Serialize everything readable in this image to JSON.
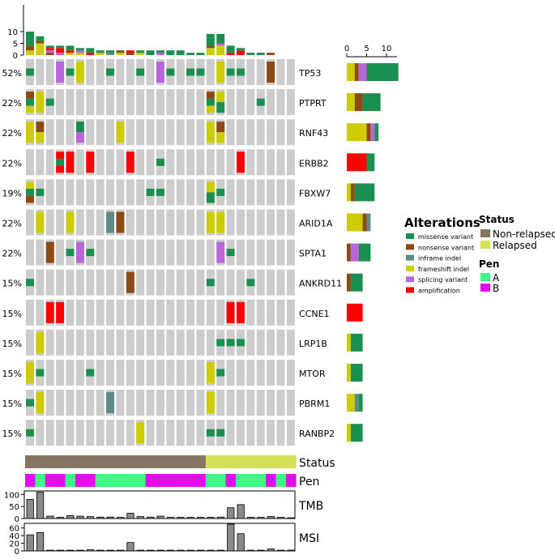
{
  "chart_data": {
    "type": "oncoprint",
    "sample_count": 27,
    "top_bar_ticks": [
      0,
      5,
      10
    ],
    "right_bar_ticks": [
      0,
      5,
      10
    ],
    "colors": {
      "missense": "#1a8f4f",
      "nonsense": "#8b4a16",
      "inframe": "#5f8a87",
      "frameshift": "#cccc00",
      "splicing": "#b866d9",
      "amplification": "#ff0000",
      "empty": "#cccccc",
      "non_relapsed": "#857562",
      "relapsed": "#d4e157",
      "pen_A": "#3dfa86",
      "pen_B": "#e60af0",
      "bar": "#8a8a8a"
    },
    "genes": [
      {
        "name": "TP53",
        "pct": "52%",
        "cells": [
          [
            "missense"
          ],
          [],
          [],
          [
            "splicing"
          ],
          [
            "missense"
          ],
          [
            "frameshift"
          ],
          [],
          [],
          [
            "missense"
          ],
          [],
          [],
          [
            "missense"
          ],
          [],
          [
            "splicing"
          ],
          [
            "missense"
          ],
          [],
          [
            "missense"
          ],
          [
            "missense"
          ],
          [],
          [
            "frameshift"
          ],
          [
            "missense"
          ],
          [
            "missense"
          ],
          [],
          [],
          [
            "nonsense"
          ],
          [],
          []
        ]
      },
      {
        "name": "PTPRT",
        "pct": "22%",
        "cells": [
          [
            "nonsense",
            "missense",
            "frameshift"
          ],
          [
            "frameshift"
          ],
          [
            "missense"
          ],
          [],
          [],
          [],
          [],
          [],
          [],
          [],
          [],
          [],
          [],
          [],
          [],
          [],
          [],
          [],
          [
            "nonsense",
            "missense",
            "frameshift"
          ],
          [
            "frameshift",
            "missense"
          ],
          [],
          [],
          [],
          [
            "missense"
          ],
          [],
          [],
          []
        ]
      },
      {
        "name": "RNF43",
        "pct": "22%",
        "cells": [
          [
            "frameshift"
          ],
          [
            "nonsense",
            "frameshift"
          ],
          [],
          [],
          [],
          [
            "missense",
            "splicing"
          ],
          [],
          [],
          [],
          [
            "frameshift"
          ],
          [],
          [],
          [],
          [],
          [],
          [],
          [],
          [],
          [
            "frameshift"
          ],
          [
            "nonsense",
            "frameshift"
          ],
          [],
          [],
          [],
          [],
          [],
          [],
          []
        ]
      },
      {
        "name": "ERBB2",
        "pct": "22%",
        "cells": [
          [],
          [],
          [],
          [
            "amplification",
            "missense",
            "amplification"
          ],
          [
            "amplification"
          ],
          [],
          [
            "amplification"
          ],
          [],
          [],
          [],
          [
            "amplification"
          ],
          [],
          [],
          [
            "missense"
          ],
          [],
          [],
          [],
          [],
          [],
          [],
          [],
          [
            "amplification"
          ],
          [],
          [],
          [],
          [],
          []
        ]
      },
      {
        "name": "FBXW7",
        "pct": "19%",
        "cells": [
          [
            "frameshift",
            "missense",
            "nonsense"
          ],
          [
            "missense"
          ],
          [],
          [],
          [],
          [],
          [],
          [],
          [],
          [],
          [],
          [],
          [
            "missense"
          ],
          [
            "missense"
          ],
          [],
          [],
          [],
          [],
          [
            "frameshift",
            "missense"
          ],
          [
            "missense"
          ],
          [],
          [],
          [],
          [],
          [],
          [],
          []
        ]
      },
      {
        "name": "ARID1A",
        "pct": "22%",
        "cells": [
          [],
          [
            "frameshift"
          ],
          [],
          [],
          [
            "frameshift"
          ],
          [],
          [],
          [],
          [
            "inframe"
          ],
          [
            "nonsense"
          ],
          [],
          [],
          [],
          [],
          [],
          [],
          [],
          [],
          [
            "frameshift"
          ],
          [
            "frameshift"
          ],
          [],
          [],
          [],
          [],
          [],
          [],
          []
        ]
      },
      {
        "name": "SPTA1",
        "pct": "22%",
        "cells": [
          [],
          [],
          [
            "nonsense"
          ],
          [],
          [
            "missense"
          ],
          [
            "splicing"
          ],
          [
            "missense"
          ],
          [],
          [],
          [],
          [],
          [],
          [],
          [],
          [],
          [],
          [],
          [],
          [],
          [
            "splicing"
          ],
          [
            "missense"
          ],
          [],
          [],
          [],
          [],
          [],
          []
        ]
      },
      {
        "name": "ANKRD11",
        "pct": "15%",
        "cells": [
          [
            "missense"
          ],
          [],
          [],
          [],
          [],
          [],
          [],
          [],
          [],
          [],
          [
            "nonsense"
          ],
          [],
          [],
          [],
          [],
          [],
          [],
          [],
          [
            "missense"
          ],
          [],
          [],
          [],
          [
            "missense"
          ],
          [],
          [],
          [],
          []
        ]
      },
      {
        "name": "CCNE1",
        "pct": "15%",
        "cells": [
          [],
          [],
          [
            "amplification"
          ],
          [
            "amplification"
          ],
          [],
          [],
          [],
          [],
          [],
          [],
          [],
          [],
          [],
          [],
          [],
          [],
          [],
          [],
          [],
          [],
          [
            "amplification"
          ],
          [
            "amplification"
          ],
          [],
          [],
          [],
          [],
          []
        ]
      },
      {
        "name": "LRP1B",
        "pct": "15%",
        "cells": [
          [],
          [
            "frameshift"
          ],
          [],
          [],
          [],
          [],
          [],
          [],
          [],
          [],
          [],
          [],
          [],
          [],
          [],
          [],
          [],
          [],
          [],
          [
            "missense"
          ],
          [
            "missense"
          ],
          [
            "missense"
          ],
          [],
          [],
          [],
          [],
          []
        ]
      },
      {
        "name": "MTOR",
        "pct": "15%",
        "cells": [
          [
            "frameshift"
          ],
          [
            "missense"
          ],
          [],
          [],
          [],
          [],
          [
            "missense"
          ],
          [],
          [],
          [],
          [],
          [],
          [],
          [],
          [],
          [],
          [],
          [],
          [
            "frameshift"
          ],
          [
            "missense"
          ],
          [],
          [],
          [],
          [],
          [],
          [],
          []
        ]
      },
      {
        "name": "PBRM1",
        "pct": "15%",
        "cells": [
          [
            "missense"
          ],
          [
            "frameshift"
          ],
          [],
          [],
          [],
          [],
          [],
          [],
          [
            "inframe"
          ],
          [],
          [],
          [],
          [],
          [],
          [],
          [],
          [],
          [],
          [
            "frameshift"
          ],
          [],
          [],
          [],
          [],
          [],
          [],
          [],
          []
        ]
      },
      {
        "name": "RANBP2",
        "pct": "15%",
        "cells": [
          [
            "missense"
          ],
          [],
          [],
          [],
          [],
          [],
          [],
          [],
          [],
          [],
          [],
          [
            "frameshift"
          ],
          [],
          [],
          [],
          [],
          [],
          [],
          [
            "missense"
          ],
          [
            "missense"
          ],
          [],
          [],
          [],
          [],
          [],
          [],
          []
        ]
      }
    ],
    "top_bar": [
      {
        "missense": 6,
        "nonsense": 2,
        "frameshift": 2
      },
      {
        "missense": 2,
        "nonsense": 1,
        "frameshift": 5
      },
      {
        "missense": 1,
        "splicing": 1,
        "nonsense": 1,
        "amplification": 1
      },
      {
        "missense": 1,
        "splicing": 1,
        "amplification": 2
      },
      {
        "missense": 2,
        "frameshift": 1,
        "amplification": 1
      },
      {
        "missense": 1,
        "splicing": 1,
        "frameshift": 1
      },
      {
        "missense": 2,
        "amplification": 1
      },
      {
        "missense": 1,
        "frameshift": 1
      },
      {
        "inframe": 1,
        "missense": 1
      },
      {
        "nonsense": 1,
        "frameshift": 1
      },
      {
        "nonsense": 1,
        "amplification": 1
      },
      {
        "missense": 1,
        "frameshift": 1
      },
      {
        "missense": 2
      },
      {
        "missense": 1,
        "splicing": 1
      },
      {
        "missense": 2
      },
      {
        "missense": 2
      },
      {
        "missense": 1
      },
      {
        "missense": 1
      },
      {
        "missense": 5,
        "nonsense": 1,
        "frameshift": 3
      },
      {
        "missense": 4,
        "splicing": 1,
        "frameshift": 4
      },
      {
        "missense": 3,
        "amplification": 1
      },
      {
        "missense": 1,
        "amplification": 2
      },
      {
        "missense": 1
      },
      {
        "missense": 1
      },
      {
        "nonsense": 1
      },
      {},
      {}
    ],
    "right_bar": [
      {
        "frameshift": 2,
        "nonsense": 1,
        "splicing": 2,
        "missense": 8
      },
      {
        "frameshift": 2,
        "nonsense": 2,
        "missense": 4.5
      },
      {
        "frameshift": 5,
        "nonsense": 1,
        "splicing": 1,
        "missense": 1
      },
      {
        "amplification": 5,
        "missense": 2
      },
      {
        "frameshift": 1,
        "nonsense": 1,
        "missense": 5
      },
      {
        "frameshift": 4,
        "nonsense": 1,
        "inframe": 1
      },
      {
        "nonsense": 1,
        "splicing": 2,
        "missense": 3
      },
      {
        "nonsense": 1,
        "missense": 3
      },
      {
        "amplification": 4
      },
      {
        "frameshift": 1,
        "missense": 3
      },
      {
        "frameshift": 1,
        "missense": 3
      },
      {
        "frameshift": 2,
        "inframe": 1,
        "missense": 1
      },
      {
        "frameshift": 1,
        "missense": 3
      }
    ],
    "status": [
      "non_relapsed",
      "non_relapsed",
      "non_relapsed",
      "non_relapsed",
      "non_relapsed",
      "non_relapsed",
      "non_relapsed",
      "non_relapsed",
      "non_relapsed",
      "non_relapsed",
      "non_relapsed",
      "non_relapsed",
      "non_relapsed",
      "non_relapsed",
      "non_relapsed",
      "non_relapsed",
      "non_relapsed",
      "non_relapsed",
      "relapsed",
      "relapsed",
      "relapsed",
      "relapsed",
      "relapsed",
      "relapsed",
      "relapsed",
      "relapsed",
      "relapsed"
    ],
    "pen": [
      "B",
      "A",
      "B",
      "B",
      "A",
      "B",
      "B",
      "A",
      "A",
      "A",
      "A",
      "A",
      "B",
      "B",
      "B",
      "B",
      "B",
      "B",
      "A",
      "A",
      "B",
      "A",
      "A",
      "A",
      "B",
      "A",
      "B"
    ],
    "tmb": {
      "label": "TMB",
      "ticks": [
        0,
        50,
        100
      ],
      "values": [
        80,
        110,
        10,
        5,
        12,
        10,
        8,
        6,
        6,
        5,
        22,
        8,
        6,
        10,
        5,
        5,
        5,
        5,
        5,
        6,
        45,
        58,
        5,
        5,
        8,
        5,
        3
      ]
    },
    "msi": {
      "label": "MSI",
      "ticks": [
        0,
        20,
        40,
        60
      ],
      "values": [
        42,
        48,
        2,
        2,
        2,
        2,
        3,
        2,
        2,
        2,
        22,
        2,
        2,
        2,
        2,
        2,
        2,
        2,
        2,
        2,
        70,
        45,
        2,
        2,
        5,
        2,
        2
      ]
    },
    "status_label": "Status",
    "pen_label": "Pen"
  },
  "legend": {
    "alterations_title": "Alterations",
    "alterations": [
      {
        "key": "missense",
        "label": "missense variant"
      },
      {
        "key": "nonsense",
        "label": "nonsense variant"
      },
      {
        "key": "inframe",
        "label": "inframe indel"
      },
      {
        "key": "frameshift",
        "label": "frameshift indel"
      },
      {
        "key": "splicing",
        "label": "splicing variant"
      },
      {
        "key": "amplification",
        "label": "amplification"
      }
    ],
    "status_title": "Status",
    "status": [
      {
        "key": "non_relapsed",
        "label": "Non-relapsed"
      },
      {
        "key": "relapsed",
        "label": "Relapsed"
      }
    ],
    "pen_title": "Pen",
    "pen": [
      {
        "key": "pen_A",
        "label": "A"
      },
      {
        "key": "pen_B",
        "label": "B"
      }
    ]
  }
}
